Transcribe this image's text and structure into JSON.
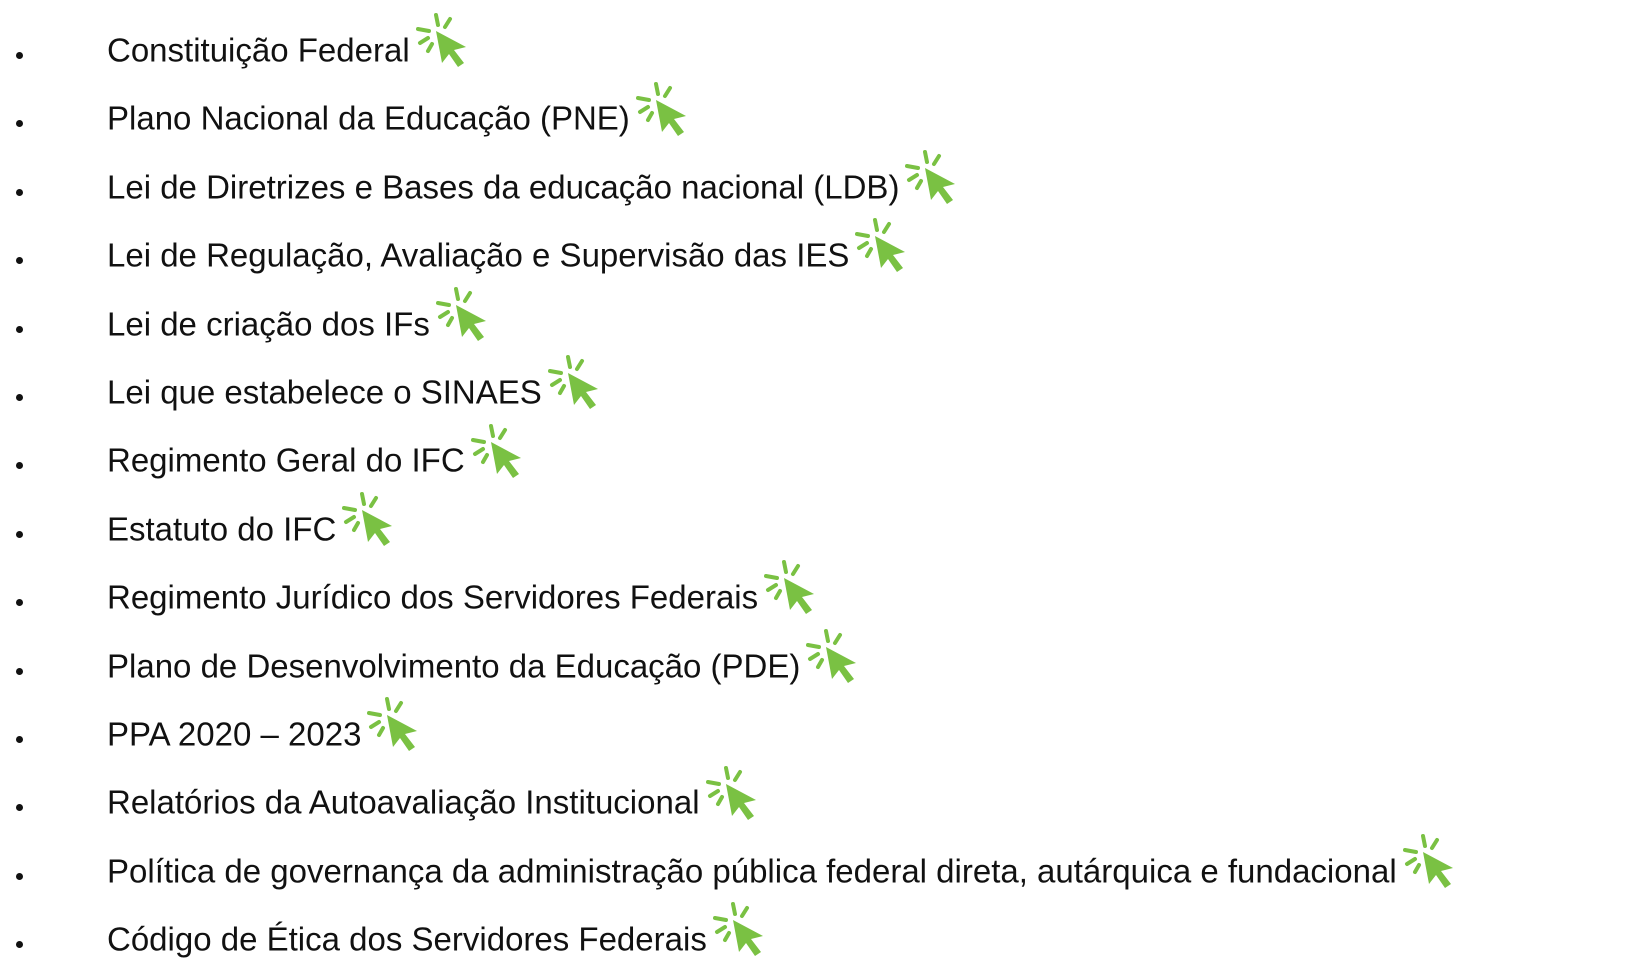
{
  "items": [
    "Constituição Federal",
    "Plano Nacional da Educação (PNE)",
    "Lei de Diretrizes e Bases da educação nacional (LDB)",
    "Lei de Regulação, Avaliação e Supervisão das IES",
    "Lei de criação dos IFs",
    "Lei que estabelece o SINAES",
    "Regimento Geral do IFC",
    "Estatuto do IFC",
    "Regimento Jurídico dos Servidores Federais",
    "Plano de Desenvolvimento da Educação (PDE)",
    "PPA 2020 – 2023",
    "Relatórios da Autoavaliação Institucional",
    "Política de governança da administração pública federal direta, autárquica e fundacional",
    "Código de Ética dos Servidores Federais"
  ]
}
